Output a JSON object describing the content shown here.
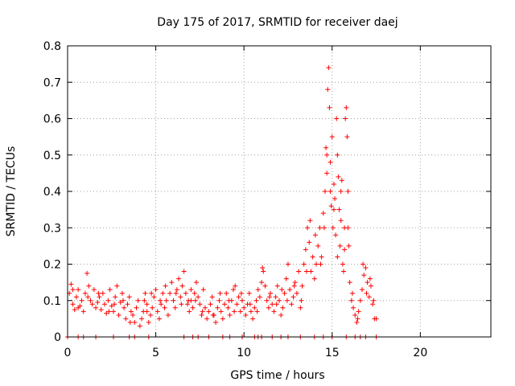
{
  "chart_data": {
    "type": "scatter",
    "title": "Day 175 of 2017, SRMTID for receiver daej",
    "xlabel": "GPS time / hours",
    "ylabel": "SRMTID / TECUs",
    "xlim": [
      0,
      24
    ],
    "ylim": [
      0,
      0.8
    ],
    "x_ticks": [
      {
        "value": 0,
        "label": "0"
      },
      {
        "value": 5,
        "label": "5"
      },
      {
        "value": 10,
        "label": "10"
      },
      {
        "value": 15,
        "label": "15"
      },
      {
        "value": 20,
        "label": "20"
      }
    ],
    "y_ticks": [
      {
        "value": 0,
        "label": "0"
      },
      {
        "value": 0.1,
        "label": "0.1"
      },
      {
        "value": 0.2,
        "label": "0.2"
      },
      {
        "value": 0.3,
        "label": "0.3"
      },
      {
        "value": 0.4,
        "label": "0.4"
      },
      {
        "value": 0.5,
        "label": "0.5"
      },
      {
        "value": 0.6,
        "label": "0.6"
      },
      {
        "value": 0.7,
        "label": "0.7"
      },
      {
        "value": 0.8,
        "label": "0.8"
      }
    ],
    "grid": true,
    "marker": "plus",
    "color": "#ff0000",
    "series": [
      {
        "name": "SRMTID",
        "points": [
          [
            0.1,
            0.12
          ],
          [
            0.2,
            0.145
          ],
          [
            0.3,
            0.09
          ],
          [
            0.4,
            0.075
          ],
          [
            0.5,
            0.11
          ],
          [
            0.6,
            0.13
          ],
          [
            0.7,
            0.085
          ],
          [
            0.8,
            0.1
          ],
          [
            0.9,
            0.07
          ],
          [
            1.0,
            0.12
          ],
          [
            1.1,
            0.175
          ],
          [
            1.2,
            0.14
          ],
          [
            1.3,
            0.1
          ],
          [
            1.4,
            0.09
          ],
          [
            1.5,
            0.13
          ],
          [
            1.6,
            0.08
          ],
          [
            1.7,
            0.095
          ],
          [
            1.8,
            0.11
          ],
          [
            1.9,
            0.075
          ],
          [
            2.0,
            0.12
          ],
          [
            2.1,
            0.09
          ],
          [
            2.2,
            0.065
          ],
          [
            2.3,
            0.1
          ],
          [
            2.4,
            0.13
          ],
          [
            2.5,
            0.085
          ],
          [
            2.6,
            0.07
          ],
          [
            2.7,
            0.11
          ],
          [
            2.8,
            0.14
          ],
          [
            2.9,
            0.06
          ],
          [
            3.0,
            0.095
          ],
          [
            3.1,
            0.12
          ],
          [
            3.2,
            0.08
          ],
          [
            3.3,
            0.05
          ],
          [
            3.4,
            0.09
          ],
          [
            3.5,
            0.11
          ],
          [
            3.6,
            0.07
          ],
          [
            3.7,
            0.06
          ],
          [
            3.8,
            0.04
          ],
          [
            3.9,
            0.08
          ],
          [
            4.0,
            0.1
          ],
          [
            4.1,
            0.03
          ],
          [
            4.2,
            0.05
          ],
          [
            4.3,
            0.07
          ],
          [
            4.4,
            0.12
          ],
          [
            4.5,
            0.09
          ],
          [
            4.6,
            0.04
          ],
          [
            4.7,
            0.06
          ],
          [
            4.8,
            0.08
          ],
          [
            4.9,
            0.11
          ],
          [
            5.0,
            0.13
          ],
          [
            5.1,
            0.07
          ],
          [
            5.2,
            0.05
          ],
          [
            5.3,
            0.09
          ],
          [
            5.4,
            0.12
          ],
          [
            5.5,
            0.08
          ],
          [
            5.6,
            0.1
          ],
          [
            5.7,
            0.06
          ],
          [
            5.8,
            0.12
          ],
          [
            5.9,
            0.15
          ],
          [
            6.0,
            0.1
          ],
          [
            6.1,
            0.08
          ],
          [
            6.2,
            0.13
          ],
          [
            6.3,
            0.16
          ],
          [
            6.4,
            0.11
          ],
          [
            6.5,
            0.14
          ],
          [
            6.6,
            0.18
          ],
          [
            6.7,
            0.12
          ],
          [
            6.8,
            0.09
          ],
          [
            6.9,
            0.07
          ],
          [
            7.0,
            0.1
          ],
          [
            7.1,
            0.08
          ],
          [
            7.2,
            0.12
          ],
          [
            7.3,
            0.15
          ],
          [
            7.4,
            0.11
          ],
          [
            7.5,
            0.09
          ],
          [
            7.6,
            0.06
          ],
          [
            7.7,
            0.13
          ],
          [
            7.8,
            0.08
          ],
          [
            7.9,
            0.05
          ],
          [
            8.0,
            0.07
          ],
          [
            8.1,
            0.09
          ],
          [
            8.2,
            0.11
          ],
          [
            8.3,
            0.06
          ],
          [
            8.4,
            0.04
          ],
          [
            8.5,
            0.08
          ],
          [
            8.6,
            0.1
          ],
          [
            8.7,
            0.07
          ],
          [
            8.8,
            0.05
          ],
          [
            8.9,
            0.09
          ],
          [
            9.0,
            0.12
          ],
          [
            9.1,
            0.08
          ],
          [
            9.2,
            0.06
          ],
          [
            9.3,
            0.1
          ],
          [
            9.4,
            0.13
          ],
          [
            9.5,
            0.14
          ],
          [
            9.6,
            0.09
          ],
          [
            9.7,
            0.11
          ],
          [
            9.8,
            0.07
          ],
          [
            9.9,
            0.1
          ],
          [
            10.0,
            0.08
          ],
          [
            10.1,
            0.06
          ],
          [
            10.2,
            0.09
          ],
          [
            10.3,
            0.12
          ],
          [
            10.4,
            0.07
          ],
          [
            10.5,
            0.05
          ],
          [
            10.6,
            0.08
          ],
          [
            10.7,
            0.1
          ],
          [
            10.8,
            0.13
          ],
          [
            10.9,
            0.11
          ],
          [
            11.0,
            0.15
          ],
          [
            11.1,
            0.18
          ],
          [
            11.2,
            0.14
          ],
          [
            11.3,
            0.1
          ],
          [
            11.4,
            0.08
          ],
          [
            11.5,
            0.12
          ],
          [
            11.6,
            0.09
          ],
          [
            11.7,
            0.07
          ],
          [
            11.8,
            0.11
          ],
          [
            11.9,
            0.14
          ],
          [
            12.0,
            0.1
          ],
          [
            12.1,
            0.06
          ],
          [
            12.2,
            0.08
          ],
          [
            12.3,
            0.12
          ],
          [
            12.4,
            0.16
          ],
          [
            12.5,
            0.2
          ],
          [
            12.6,
            0.13
          ],
          [
            12.7,
            0.09
          ],
          [
            12.8,
            0.11
          ],
          [
            12.9,
            0.15
          ],
          [
            13.0,
            0.12
          ],
          [
            13.1,
            0.18
          ],
          [
            13.2,
            0.08
          ],
          [
            13.3,
            0.14
          ],
          [
            13.4,
            0.2
          ],
          [
            13.5,
            0.24
          ],
          [
            13.6,
            0.3
          ],
          [
            13.7,
            0.26
          ],
          [
            13.8,
            0.18
          ],
          [
            13.9,
            0.22
          ],
          [
            14.0,
            0.16
          ],
          [
            14.1,
            0.2
          ],
          [
            14.2,
            0.25
          ],
          [
            14.3,
            0.3
          ],
          [
            14.4,
            0.22
          ],
          [
            14.5,
            0.34
          ],
          [
            14.6,
            0.4
          ],
          [
            14.65,
            0.52
          ],
          [
            14.7,
            0.45
          ],
          [
            14.75,
            0.68
          ],
          [
            14.8,
            0.74
          ],
          [
            14.85,
            0.63
          ],
          [
            14.9,
            0.48
          ],
          [
            14.95,
            0.36
          ],
          [
            15.0,
            0.55
          ],
          [
            15.05,
            0.3
          ],
          [
            15.1,
            0.42
          ],
          [
            15.15,
            0.38
          ],
          [
            15.2,
            0.28
          ],
          [
            15.25,
            0.6
          ],
          [
            15.3,
            0.5
          ],
          [
            15.35,
            0.44
          ],
          [
            15.4,
            0.35
          ],
          [
            15.45,
            0.25
          ],
          [
            15.5,
            0.32
          ],
          [
            15.55,
            0.43
          ],
          [
            15.6,
            0.2
          ],
          [
            15.65,
            0.18
          ],
          [
            15.7,
            0.3
          ],
          [
            15.75,
            0.6
          ],
          [
            15.8,
            0.63
          ],
          [
            15.85,
            0.55
          ],
          [
            15.9,
            0.4
          ],
          [
            15.95,
            0.25
          ],
          [
            16.0,
            0.15
          ],
          [
            16.1,
            0.1
          ],
          [
            16.2,
            0.08
          ],
          [
            16.3,
            0.06
          ],
          [
            16.4,
            0.04
          ],
          [
            16.5,
            0.07
          ],
          [
            16.6,
            0.1
          ],
          [
            16.7,
            0.13
          ],
          [
            16.8,
            0.17
          ],
          [
            16.9,
            0.19
          ],
          [
            17.0,
            0.15
          ],
          [
            17.1,
            0.11
          ],
          [
            17.2,
            0.14
          ],
          [
            17.3,
            0.09
          ],
          [
            17.4,
            0.05
          ],
          [
            17.5,
            0.05
          ],
          [
            0.3,
            0.13
          ],
          [
            0.6,
            0.08
          ],
          [
            1.15,
            0.11
          ],
          [
            1.75,
            0.12
          ],
          [
            2.35,
            0.07
          ],
          [
            2.65,
            0.09
          ],
          [
            3.15,
            0.1
          ],
          [
            3.55,
            0.04
          ],
          [
            4.35,
            0.1
          ],
          [
            4.75,
            0.12
          ],
          [
            5.25,
            0.1
          ],
          [
            5.55,
            0.14
          ],
          [
            6.15,
            0.12
          ],
          [
            6.45,
            0.09
          ],
          [
            6.85,
            0.1
          ],
          [
            7.25,
            0.1
          ],
          [
            7.65,
            0.07
          ],
          [
            8.25,
            0.06
          ],
          [
            8.65,
            0.12
          ],
          [
            9.15,
            0.1
          ],
          [
            9.45,
            0.07
          ],
          [
            9.85,
            0.12
          ],
          [
            10.35,
            0.09
          ],
          [
            10.75,
            0.07
          ],
          [
            11.05,
            0.19
          ],
          [
            11.45,
            0.11
          ],
          [
            11.85,
            0.09
          ],
          [
            12.15,
            0.13
          ],
          [
            12.45,
            0.1
          ],
          [
            12.85,
            0.14
          ],
          [
            13.25,
            0.1
          ],
          [
            13.55,
            0.18
          ],
          [
            13.75,
            0.32
          ],
          [
            14.05,
            0.28
          ],
          [
            14.35,
            0.2
          ],
          [
            14.55,
            0.3
          ],
          [
            14.7,
            0.5
          ],
          [
            14.9,
            0.4
          ],
          [
            15.1,
            0.35
          ],
          [
            15.3,
            0.22
          ],
          [
            15.5,
            0.4
          ],
          [
            15.7,
            0.24
          ],
          [
            15.9,
            0.3
          ],
          [
            16.15,
            0.12
          ],
          [
            16.45,
            0.05
          ],
          [
            16.75,
            0.2
          ],
          [
            16.95,
            0.12
          ],
          [
            17.15,
            0.16
          ],
          [
            17.35,
            0.1
          ],
          [
            4.5,
            0.07
          ],
          [
            7.0,
            0.13
          ],
          [
            0.0,
            0.0
          ],
          [
            0.6,
            0.0
          ],
          [
            0.9,
            0.0
          ],
          [
            1.6,
            0.0
          ],
          [
            2.6,
            0.0
          ],
          [
            3.5,
            0.0
          ],
          [
            3.8,
            0.0
          ],
          [
            4.6,
            0.0
          ],
          [
            6.6,
            0.0
          ],
          [
            7.1,
            0.0
          ],
          [
            7.4,
            0.0
          ],
          [
            8.0,
            0.0
          ],
          [
            8.8,
            0.0
          ],
          [
            9.2,
            0.0
          ],
          [
            9.9,
            0.0
          ],
          [
            10.6,
            0.0
          ],
          [
            11.0,
            0.0
          ],
          [
            11.6,
            0.0
          ],
          [
            12.1,
            0.0
          ],
          [
            12.5,
            0.0
          ],
          [
            13.2,
            0.0
          ],
          [
            14.0,
            0.0
          ],
          [
            14.5,
            0.0
          ],
          [
            15.0,
            0.0
          ],
          [
            15.8,
            0.0
          ],
          [
            16.3,
            0.0
          ],
          [
            16.6,
            0.0
          ],
          [
            16.9,
            0.0
          ],
          [
            17.5,
            0.0
          ],
          [
            10.8,
            0.0
          ]
        ]
      }
    ]
  }
}
